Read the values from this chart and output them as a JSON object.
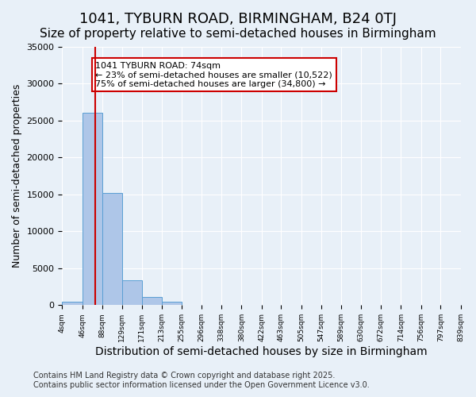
{
  "title1": "1041, TYBURN ROAD, BIRMINGHAM, B24 0TJ",
  "title2": "Size of property relative to semi-detached houses in Birmingham",
  "xlabel": "Distribution of semi-detached houses by size in Birmingham",
  "ylabel": "Number of semi-detached properties",
  "bins": [
    "4sqm",
    "46sqm",
    "88sqm",
    "129sqm",
    "171sqm",
    "213sqm",
    "255sqm",
    "296sqm",
    "338sqm",
    "380sqm",
    "422sqm",
    "463sqm",
    "505sqm",
    "547sqm",
    "589sqm",
    "630sqm",
    "672sqm",
    "714sqm",
    "756sqm",
    "797sqm",
    "839sqm"
  ],
  "bin_edges": [
    4,
    46,
    88,
    129,
    171,
    213,
    255,
    296,
    338,
    380,
    422,
    463,
    505,
    547,
    589,
    630,
    672,
    714,
    756,
    797,
    839
  ],
  "bar_heights": [
    500,
    26100,
    15200,
    3400,
    1100,
    500,
    80,
    30,
    20,
    10,
    8,
    5,
    3,
    2,
    2,
    1,
    1,
    1,
    1,
    1
  ],
  "bar_color": "#aec6e8",
  "bar_edge_color": "#5a9fd4",
  "ylim": [
    0,
    35000
  ],
  "yticks": [
    0,
    5000,
    10000,
    15000,
    20000,
    25000,
    30000,
    35000
  ],
  "property_size": 74,
  "red_line_color": "#cc0000",
  "annotation_text": "1041 TYBURN ROAD: 74sqm\n← 23% of semi-detached houses are smaller (10,522)\n75% of semi-detached houses are larger (34,800) →",
  "annotation_box_color": "#ffffff",
  "annotation_border_color": "#cc0000",
  "bg_color": "#e8f0f8",
  "grid_color": "#ffffff",
  "footer": "Contains HM Land Registry data © Crown copyright and database right 2025.\nContains public sector information licensed under the Open Government Licence v3.0.",
  "title1_fontsize": 13,
  "title2_fontsize": 11,
  "xlabel_fontsize": 10,
  "ylabel_fontsize": 9,
  "annotation_fontsize": 8,
  "footer_fontsize": 7
}
